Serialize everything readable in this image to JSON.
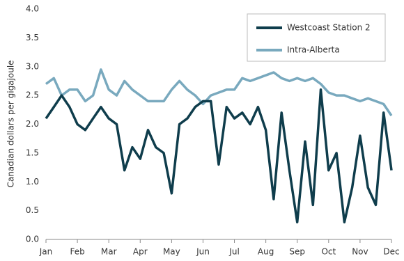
{
  "chart_data": {
    "type": "line",
    "y_label": "Canadian dollars per gigajoule",
    "categories": [
      "Jan",
      null,
      null,
      null,
      "Feb",
      null,
      null,
      null,
      "Mar",
      null,
      null,
      null,
      "Apr",
      null,
      null,
      null,
      "May",
      null,
      null,
      null,
      "Jun",
      null,
      null,
      null,
      "Jul",
      null,
      null,
      null,
      "Aug",
      null,
      null,
      null,
      "Sep",
      null,
      null,
      null,
      "Oct",
      null,
      null,
      null,
      "Nov",
      null,
      null,
      null,
      "Dec"
    ],
    "series": [
      {
        "name": "Westcoast Station 2",
        "color": "#0f3d4c",
        "values": [
          2.1,
          2.3,
          2.5,
          2.3,
          2.0,
          1.9,
          2.1,
          2.3,
          2.1,
          2.0,
          1.2,
          1.6,
          1.4,
          1.9,
          1.6,
          1.5,
          0.8,
          2.0,
          2.1,
          2.3,
          2.4,
          2.4,
          1.3,
          2.3,
          2.1,
          2.2,
          2.0,
          2.3,
          1.9,
          0.7,
          2.2,
          1.2,
          0.3,
          1.7,
          0.6,
          2.6,
          1.2,
          1.5,
          0.3,
          0.9,
          1.8,
          0.9,
          0.6,
          2.2,
          1.2
        ]
      },
      {
        "name": "Intra-Alberta",
        "color": "#79a9be",
        "values": [
          2.7,
          2.8,
          2.5,
          2.6,
          2.6,
          2.4,
          2.5,
          2.95,
          2.6,
          2.5,
          2.75,
          2.6,
          2.5,
          2.4,
          2.4,
          2.4,
          2.6,
          2.75,
          2.6,
          2.5,
          2.35,
          2.5,
          2.55,
          2.6,
          2.6,
          2.8,
          2.75,
          2.8,
          2.85,
          2.9,
          2.8,
          2.75,
          2.8,
          2.75,
          2.8,
          2.7,
          2.55,
          2.5,
          2.5,
          2.45,
          2.4,
          2.45,
          2.4,
          2.35,
          2.15
        ]
      }
    ],
    "ylim": [
      0,
      4
    ],
    "yticks": [
      {
        "value": 0,
        "label": "0.0"
      },
      0.5,
      {
        "value": 1,
        "label": "1.0"
      },
      1.5,
      {
        "value": 2,
        "label": "2.0"
      },
      2.5,
      {
        "value": 3,
        "label": "3.0"
      },
      3.5,
      {
        "value": 4,
        "label": "4.0"
      }
    ],
    "grid": false,
    "legend": "top-right"
  }
}
